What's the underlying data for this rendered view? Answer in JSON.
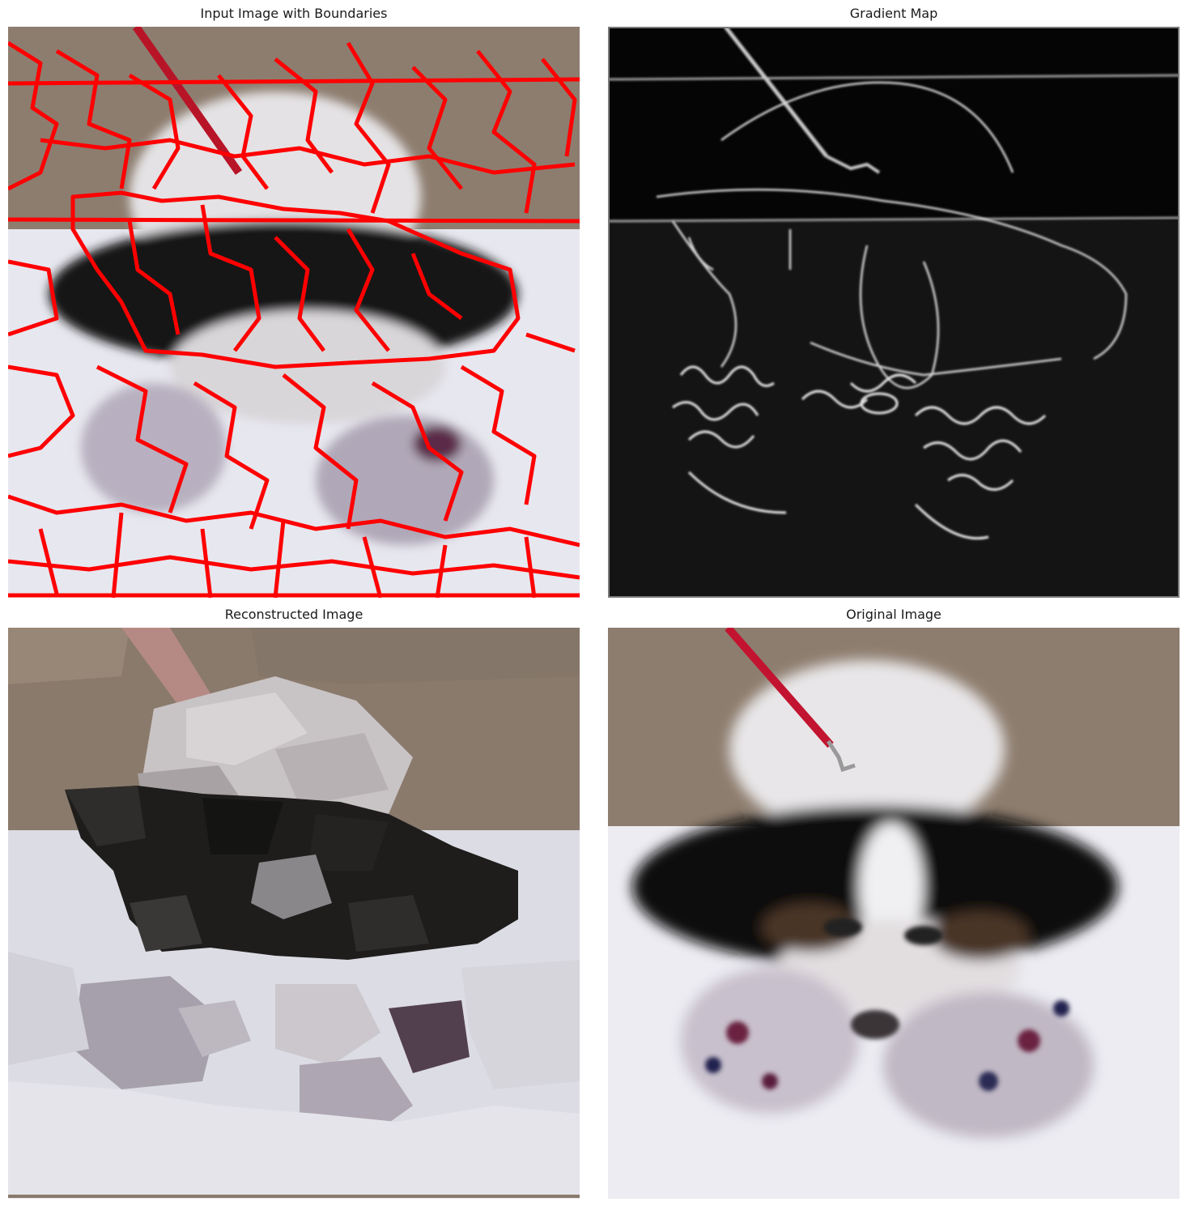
{
  "panels": {
    "boundaries": {
      "title": "Input Image with Boundaries"
    },
    "gradient": {
      "title": "Gradient Map"
    },
    "reconstructed": {
      "title": "Reconstructed Image"
    },
    "original": {
      "title": "Original Image"
    }
  },
  "colors": {
    "boundary": "#ff0000",
    "wall": "#8c7b6c",
    "snow": "#e6e6ee",
    "fur_black": "#141414",
    "fur_white": "#dcdcdc",
    "leash": "#c0102a",
    "gradient_bg": "#050505",
    "gradient_edge": "#d0d0d0"
  }
}
